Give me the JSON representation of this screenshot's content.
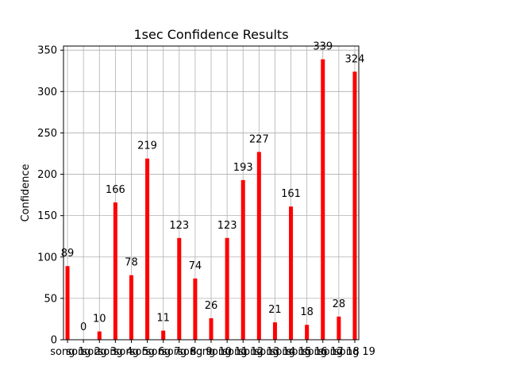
{
  "chart_data": {
    "type": "bar",
    "title": "1sec Confidence Results",
    "xlabel": "",
    "ylabel": "Confidence",
    "categories": [
      "song 1",
      "song 2",
      "song 3",
      "song 4",
      "song 5",
      "song 6",
      "song 7",
      "song 8",
      "song 9",
      "song 10",
      "song 11",
      "song 12",
      "song 13",
      "song 14",
      "song 15",
      "song 16",
      "song 17",
      "song 18",
      "song 19"
    ],
    "values": [
      89,
      0,
      10,
      166,
      78,
      219,
      11,
      123,
      74,
      26,
      123,
      193,
      227,
      21,
      161,
      18,
      339,
      28,
      324
    ],
    "ylim": [
      0,
      355
    ],
    "yticks": [
      0,
      50,
      100,
      150,
      200,
      250,
      300,
      350
    ],
    "grid": true,
    "bar_color": "#ff0000"
  }
}
